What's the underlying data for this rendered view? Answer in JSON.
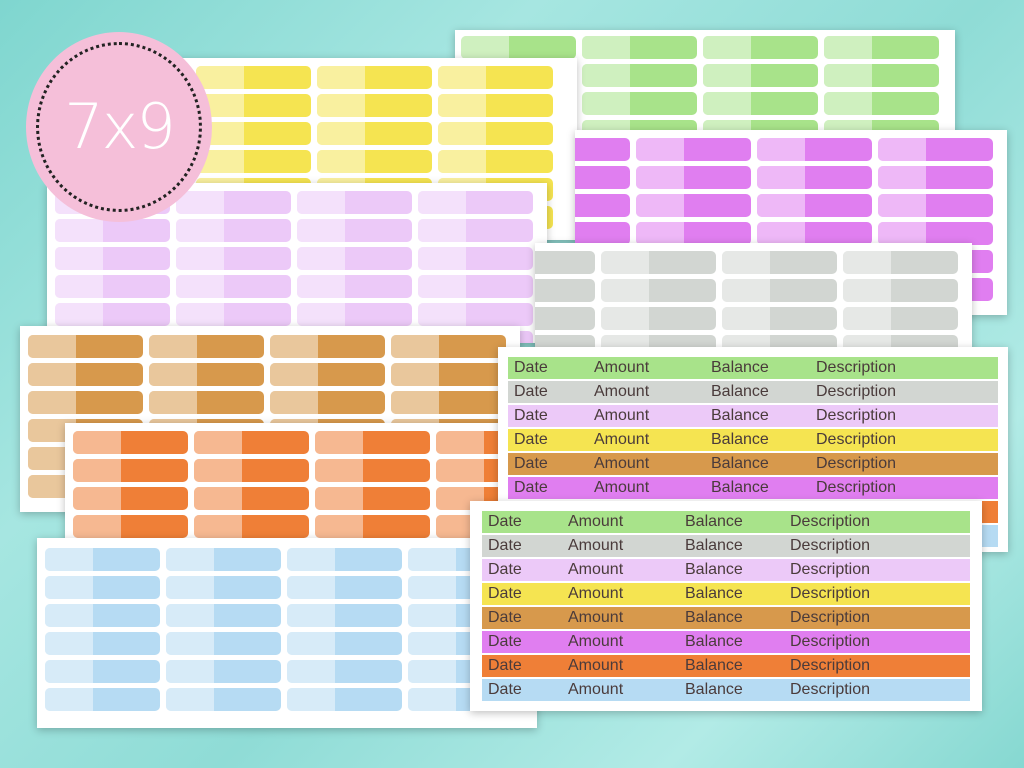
{
  "badge": {
    "text": "7x9"
  },
  "colors": {
    "green": "#a8e38a",
    "yellow": "#f5e451",
    "purple": "#e07ef0",
    "lavender": "#ecc9f8",
    "gray": "#d2d6d2",
    "tan": "#d7994c",
    "orange": "#ef7f37",
    "blue": "#b6dbf3"
  },
  "ledger_back": {
    "headers": [
      "Date",
      "Amount",
      "Balance",
      "Description"
    ],
    "row_colors": [
      "#a8e38a",
      "#d2d6d2",
      "#ecc9f8",
      "#f5e451",
      "#d7994c",
      "#e07ef0",
      "#ef7f37",
      "#b6dbf3"
    ]
  },
  "ledger_front": {
    "headers": [
      "Date",
      "Amount",
      "Balance",
      "Description"
    ],
    "row_colors": [
      "#a8e38a",
      "#d2d6d2",
      "#ecc9f8",
      "#f5e451",
      "#d7994c",
      "#e07ef0",
      "#ef7f37",
      "#b6dbf3"
    ]
  }
}
